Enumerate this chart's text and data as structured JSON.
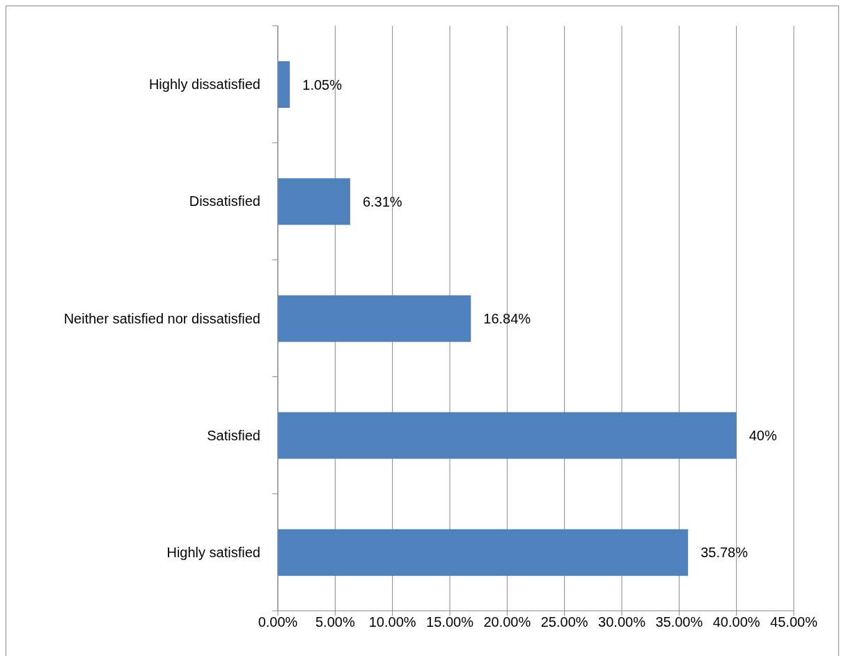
{
  "chart_data": {
    "type": "bar",
    "orientation": "horizontal",
    "categories": [
      "Highly dissatisfied",
      "Dissatisfied",
      "Neither satisfied nor dissatisfied",
      "Satisfied",
      "Highly satisfied"
    ],
    "values": [
      1.05,
      6.31,
      16.84,
      40,
      35.78
    ],
    "value_labels": [
      "1.05%",
      "6.31%",
      "16.84%",
      "40%",
      "35.78%"
    ],
    "color": "#4f81bd",
    "xlim": [
      0,
      45
    ],
    "xticks": [
      {
        "value": 0,
        "label": "0.00%"
      },
      {
        "value": 5,
        "label": "5.00%"
      },
      {
        "value": 10,
        "label": "10.00%"
      },
      {
        "value": 15,
        "label": "15.00%"
      },
      {
        "value": 20,
        "label": "20.00%"
      },
      {
        "value": 25,
        "label": "25.00%"
      },
      {
        "value": 30,
        "label": "30.00%"
      },
      {
        "value": 35,
        "label": "35.00%"
      },
      {
        "value": 40,
        "label": "40.00%"
      },
      {
        "value": 45,
        "label": "45.00%"
      }
    ],
    "grid": "x"
  }
}
